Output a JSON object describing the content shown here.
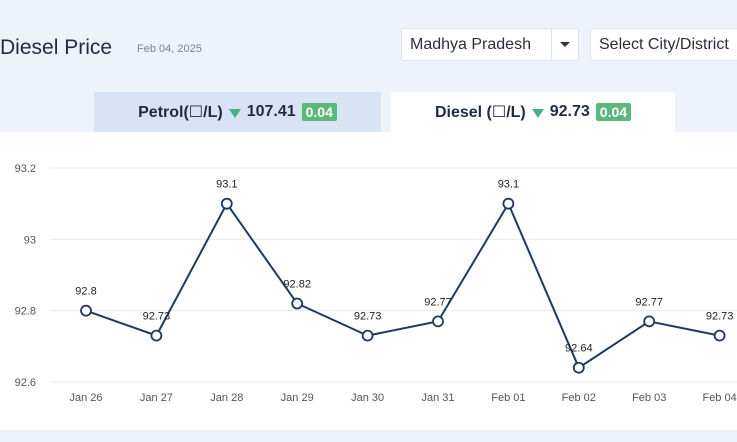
{
  "header": {
    "title": "Diesel Price",
    "date": "Feb 04, 2025"
  },
  "filters": {
    "state": "Madhya Pradesh",
    "city": "Select City/District"
  },
  "tabs": {
    "petrol": {
      "label": "Petrol(☐/L)",
      "price": "107.41",
      "change": "0.04"
    },
    "diesel": {
      "label": "Diesel (☐/L)",
      "price": "92.73",
      "change": "0.04"
    }
  },
  "colors": {
    "line": "#1e3a5f",
    "change_badge": "#5cb87a",
    "active_tab": "#ffffff",
    "inactive_tab": "#d9e3f6"
  },
  "chart_data": {
    "type": "line",
    "title": "",
    "xlabel": "",
    "ylabel": "",
    "categories": [
      "Jan 26",
      "Jan 27",
      "Jan 28",
      "Jan 29",
      "Jan 30",
      "Jan 31",
      "Feb 01",
      "Feb 02",
      "Feb 03",
      "Feb 04"
    ],
    "values": [
      92.8,
      92.73,
      93.1,
      92.82,
      92.73,
      92.77,
      93.1,
      92.64,
      92.77,
      92.73
    ],
    "data_labels": [
      "92.8",
      "92.73",
      "93.1",
      "92.82",
      "92.73",
      "92.77",
      "93.1",
      "92.64",
      "92.77",
      "92.73"
    ],
    "y_ticks": [
      "93.2",
      "93",
      "92.8",
      "92.6"
    ],
    "ylim": [
      92.6,
      93.2
    ],
    "grid": true,
    "legend": "none"
  }
}
